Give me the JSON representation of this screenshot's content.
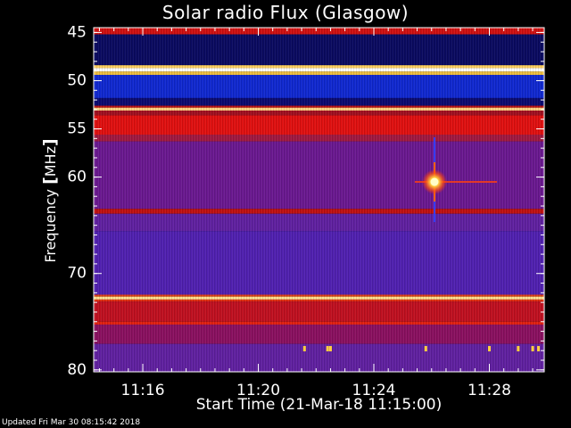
{
  "chart_data": {
    "type": "heatmap",
    "title": "Solar radio Flux (Glasgow)",
    "xlabel": "Start Time (21-Mar-18 11:15:00)",
    "ylabel": {
      "text": "Frequency",
      "unit_open": "[",
      "unit": "MHz",
      "unit_close": "]"
    },
    "x_unit": "minutes after 11:00 UT",
    "xlim": [
      14.3,
      29.9
    ],
    "x_ticks": [
      {
        "value": 16,
        "label": "11:16"
      },
      {
        "value": 20,
        "label": "11:20"
      },
      {
        "value": 24,
        "label": "11:24"
      },
      {
        "value": 28,
        "label": "11:28"
      }
    ],
    "x_minor_step": 0.5,
    "ylim": [
      44.5,
      80.2
    ],
    "y_ticks": [
      {
        "value": 45,
        "label": "45"
      },
      {
        "value": 50,
        "label": "50"
      },
      {
        "value": 55,
        "label": "55"
      },
      {
        "value": 60,
        "label": "60"
      },
      {
        "value": 70,
        "label": "70"
      },
      {
        "value": 80,
        "label": "80"
      }
    ],
    "y_minor_step": 1,
    "bands": [
      {
        "from": 44.5,
        "to": 45.2,
        "color": "#d01010"
      },
      {
        "from": 45.2,
        "to": 48.4,
        "color": "#0a0a60"
      },
      {
        "from": 48.4,
        "to": 48.7,
        "color": "#ffd060"
      },
      {
        "from": 48.7,
        "to": 49.05,
        "color": "#ffffff"
      },
      {
        "from": 49.05,
        "to": 49.4,
        "color": "#f0c040"
      },
      {
        "from": 49.4,
        "to": 51.8,
        "color": "#1028d0"
      },
      {
        "from": 51.8,
        "to": 52.6,
        "color": "#0a0a70"
      },
      {
        "from": 52.6,
        "to": 52.8,
        "color": "#c01010"
      },
      {
        "from": 52.8,
        "to": 53.1,
        "color": "#ffd080"
      },
      {
        "from": 53.1,
        "to": 53.6,
        "color": "#a01020"
      },
      {
        "from": 53.6,
        "to": 55.6,
        "color": "#e01010"
      },
      {
        "from": 55.6,
        "to": 56.3,
        "color": "#a01840"
      },
      {
        "from": 56.3,
        "to": 63.3,
        "color": "#6a1890"
      },
      {
        "from": 63.3,
        "to": 63.8,
        "color": "#c01010"
      },
      {
        "from": 63.8,
        "to": 65.6,
        "color": "#6020a0"
      },
      {
        "from": 65.6,
        "to": 72.2,
        "color": "#5020b0"
      },
      {
        "from": 72.2,
        "to": 72.4,
        "color": "#e04010"
      },
      {
        "from": 72.4,
        "to": 72.7,
        "color": "#ffe090"
      },
      {
        "from": 72.7,
        "to": 72.9,
        "color": "#e03010"
      },
      {
        "from": 72.9,
        "to": 75.0,
        "color": "#c01020"
      },
      {
        "from": 75.0,
        "to": 75.3,
        "color": "#e02010"
      },
      {
        "from": 75.3,
        "to": 77.3,
        "color": "#8a1060"
      },
      {
        "from": 77.3,
        "to": 80.2,
        "color": "#6020a0"
      }
    ],
    "burst": {
      "time": 26.1,
      "frequency": 60.5,
      "color": "#ffffc8"
    },
    "markers": [
      {
        "time": 21.6,
        "frequency": 77.8,
        "color": "#ffd040"
      },
      {
        "time": 22.4,
        "frequency": 77.8,
        "color": "#ffd040"
      },
      {
        "time": 22.5,
        "frequency": 77.8,
        "color": "#ffd040"
      },
      {
        "time": 25.8,
        "frequency": 77.8,
        "color": "#ffd040"
      },
      {
        "time": 28.0,
        "frequency": 77.8,
        "color": "#ffd040"
      },
      {
        "time": 29.0,
        "frequency": 77.8,
        "color": "#ffd040"
      },
      {
        "time": 29.5,
        "frequency": 77.8,
        "color": "#ffd040"
      },
      {
        "time": 29.7,
        "frequency": 77.8,
        "color": "#ffd040"
      }
    ]
  },
  "footer": {
    "updated": "Updated Fri Mar 30 08:15:42 2018"
  }
}
